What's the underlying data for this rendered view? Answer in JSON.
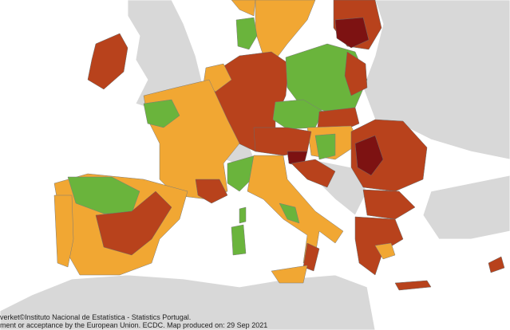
{
  "attribution": {
    "lines": [
      "verket©Instituto Nacional de Estatística - Statistics Portugal.",
      "ment or acceptance by the European Union. ECDC. Map produced on: 29 Sep 2021"
    ]
  }
}
